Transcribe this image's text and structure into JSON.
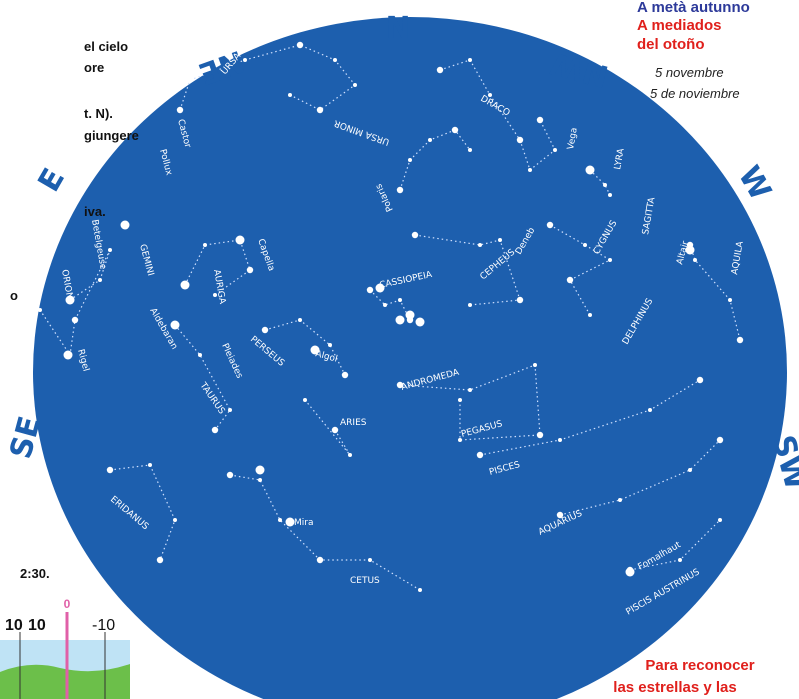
{
  "header": {
    "title_it": "A metà autunno",
    "title_es": [
      "A mediados",
      "del otoño"
    ],
    "date_it": "5 novembre",
    "date_es": "5 de noviembre"
  },
  "left_text": [
    "el cielo",
    "ore",
    "t. N).",
    "giungere",
    "iva.",
    "o",
    "2:30."
  ],
  "directions": [
    "N",
    "NE",
    "NW",
    "E",
    "W",
    "SE",
    "SW"
  ],
  "labels": [
    "URSA MAJOR",
    "DRACO",
    "URSA MINOR",
    "Polaris",
    "Castor",
    "Pollux",
    "GEMINI",
    "Betelgeuse",
    "ORION",
    "Rigel",
    "AURIGA",
    "Capella",
    "Aldebaran",
    "TAURUS",
    "Pleiades",
    "PERSEUS",
    "Algol",
    "CASSIOPEIA",
    "CEPHEUS",
    "Deneb",
    "CYGNUS",
    "Vega",
    "LYRA",
    "SAGITTA",
    "Altair",
    "AQUILA",
    "DELPHINUS",
    "ANDROMEDA",
    "PEGASUS",
    "ARIES",
    "PISCES",
    "ERIDANUS",
    "Mira",
    "CETUS",
    "AQUARIUS",
    "Fomalhaut",
    "PISCIS AUSTRINUS"
  ],
  "inset": [
    "0",
    "10",
    "10",
    "-10"
  ],
  "footer": [
    "Para reconocer",
    "las estrellas y las"
  ]
}
